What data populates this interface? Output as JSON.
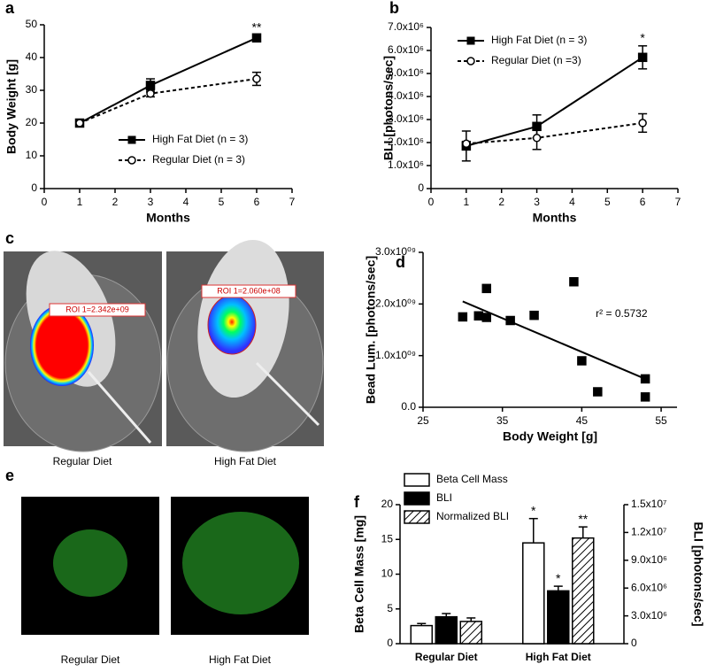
{
  "chart_data": [
    {
      "type": "line",
      "panel": "a",
      "xlabel": "Months",
      "ylabel": "Body Weight [g]",
      "xlim": [
        0,
        7
      ],
      "xticks": [
        0,
        1,
        2,
        3,
        4,
        5,
        6,
        7
      ],
      "ylim": [
        0,
        50
      ],
      "yticks": [
        0,
        10,
        20,
        30,
        40,
        50
      ],
      "x": [
        1,
        3,
        6
      ],
      "legend": "lower right",
      "series": [
        {
          "name": "High Fat Diet (n = 3)",
          "color": "#000000",
          "marker": "square",
          "dashed": false,
          "values": [
            20,
            31.5,
            46
          ],
          "errors": [
            0.5,
            2,
            0.8
          ],
          "annotations": [
            null,
            null,
            "**"
          ]
        },
        {
          "name": "Regular Diet (n = 3)",
          "color": "#000000",
          "marker": "circle",
          "dashed": true,
          "values": [
            20,
            29,
            33.5
          ],
          "errors": [
            0.5,
            1,
            2
          ]
        }
      ]
    },
    {
      "type": "line",
      "panel": "b",
      "xlabel": "Months",
      "ylabel": "BLI [photons/sec]",
      "xlim": [
        0,
        7
      ],
      "xticks": [
        0,
        1,
        2,
        3,
        4,
        5,
        6,
        7
      ],
      "ylim": [
        0,
        7000000
      ],
      "yticks": [
        0,
        {
          "value": 1000000,
          "label": "1.0x10⁶"
        },
        {
          "value": 2000000,
          "label": "2.0x10⁶"
        },
        {
          "value": 3000000,
          "label": "3.0x10⁶"
        },
        {
          "value": 4000000,
          "label": "4.0x10⁶"
        },
        {
          "value": 5000000,
          "label": "5.0x10⁶"
        },
        {
          "value": 6000000,
          "label": "6.0x10⁶"
        },
        {
          "value": 7000000,
          "label": "7.0x10⁶"
        }
      ],
      "x": [
        1,
        3,
        6
      ],
      "legend": "upper left",
      "series": [
        {
          "name": "High Fat Diet (n = 3)",
          "color": "#000000",
          "marker": "square",
          "dashed": false,
          "values": [
            1850000,
            2700000,
            5700000
          ],
          "errors": [
            650000,
            500000,
            500000
          ],
          "annotations": [
            null,
            null,
            "*"
          ]
        },
        {
          "name": "Regular Diet (n =3)",
          "color": "#000000",
          "marker": "circle",
          "dashed": true,
          "values": [
            1950000,
            2200000,
            2850000
          ],
          "errors": [
            100000,
            500000,
            400000
          ]
        }
      ]
    },
    {
      "type": "scatter",
      "panel": "d",
      "xlabel": "Body Weight [g]",
      "ylabel": "Bead Lum. [photons/sec]",
      "xlim": [
        25,
        57
      ],
      "xticks": [
        25,
        35,
        45,
        55
      ],
      "ylim": [
        0,
        3000000000
      ],
      "yticks": [
        {
          "value": 0,
          "label": "0.0"
        },
        {
          "value": 1000000000,
          "label": "1.0x10⁰⁹"
        },
        {
          "value": 2000000000,
          "label": "2.0x10⁰⁹"
        },
        {
          "value": 3000000000,
          "label": "3.0x10⁰⁹"
        }
      ],
      "color": "#000000",
      "x": [
        30,
        32,
        33,
        33,
        36,
        39,
        44,
        45,
        47,
        53,
        53
      ],
      "values": [
        1750000000,
        1770000000,
        1740000000,
        2300000000,
        1680000000,
        1780000000,
        2430000000,
        900000000,
        300000000,
        550000000,
        200000000
      ],
      "fit": {
        "x": [
          30,
          53
        ],
        "values": [
          2050000000,
          550000000
        ]
      },
      "annotation": "r² = 0.5732"
    },
    {
      "type": "bar",
      "panel": "f",
      "ylabel": "Beta Cell Mass [mg]",
      "y2label": "BLI [photons/sec]",
      "categories": [
        "Regular Diet",
        "High Fat Diet"
      ],
      "ylim": [
        0,
        20
      ],
      "yticks": [
        0,
        5,
        10,
        15,
        20
      ],
      "y2lim": [
        0,
        15000000
      ],
      "y2ticks": [
        0,
        {
          "value": 3000000,
          "label": "3.0x10⁶"
        },
        {
          "value": 6000000,
          "label": "6.0x10⁶"
        },
        {
          "value": 9000000,
          "label": "9.0x10⁶"
        },
        {
          "value": 12000000,
          "label": "1.2x10⁷"
        },
        {
          "value": 15000000,
          "label": "1.5x10⁷"
        }
      ],
      "legend": "upper left",
      "series": [
        {
          "name": "Beta Cell Mass",
          "color": "#ffffff",
          "values": [
            2.6,
            14.5
          ],
          "errors": [
            0.3,
            3.5
          ],
          "annotations": [
            null,
            "*"
          ]
        },
        {
          "name": "BLI",
          "color": "#000000",
          "axis": "y2",
          "values": [
            2900000,
            5700000
          ],
          "errors": [
            350000,
            500000
          ],
          "annotations": [
            null,
            "*"
          ]
        },
        {
          "name": "Normalized BLI",
          "color": "hatch",
          "values": [
            3.2,
            15.2
          ],
          "errors": [
            0.5,
            1.6
          ],
          "annotations": [
            null,
            "**"
          ]
        }
      ]
    }
  ],
  "image_panels": {
    "c": {
      "panel": "c",
      "images": [
        {
          "roi": "ROI 1=2.342e+09",
          "caption": "Regular Diet"
        },
        {
          "roi": "ROI 1=2.060e+08",
          "caption": "High Fat Diet"
        }
      ]
    },
    "e": {
      "panel": "e",
      "images": [
        {
          "caption": "Regular Diet"
        },
        {
          "caption": "High Fat Diet"
        }
      ]
    }
  }
}
